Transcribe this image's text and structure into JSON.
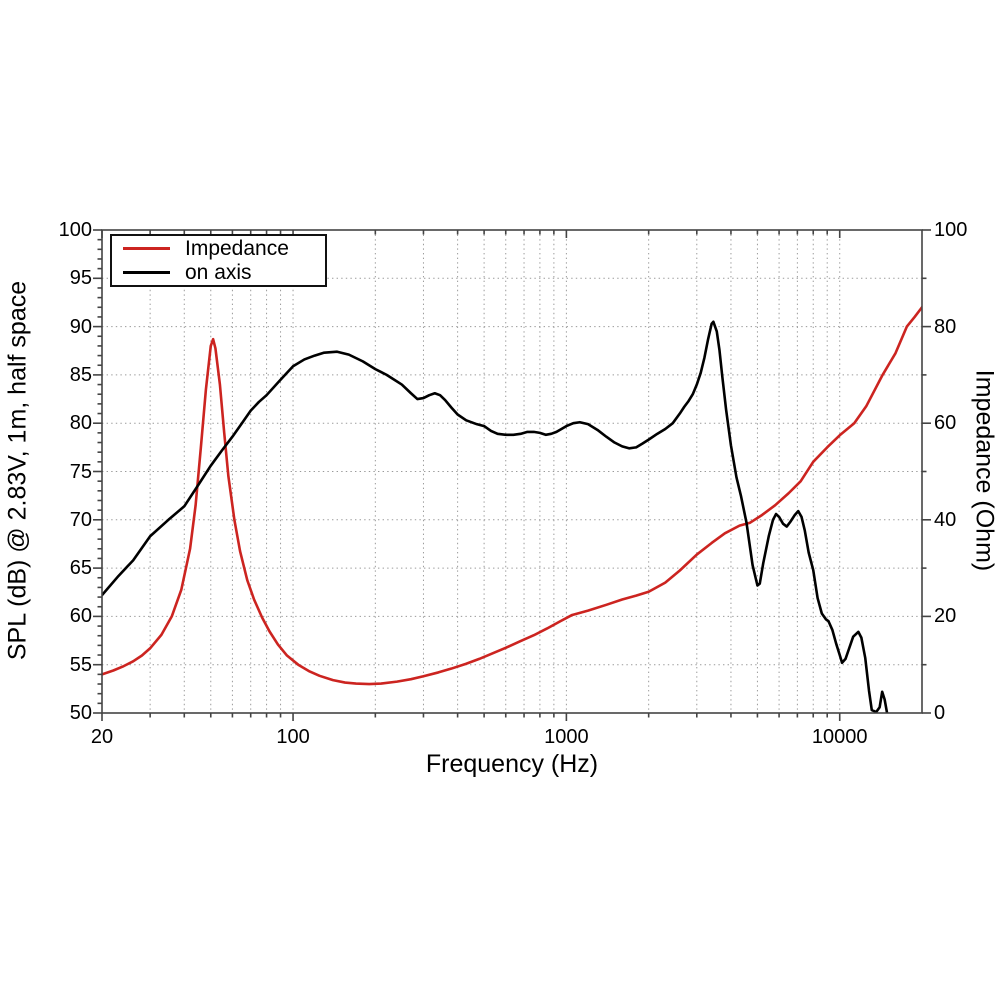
{
  "legend": {
    "items": [
      {
        "label": "Impedance",
        "color": "#cc2420"
      },
      {
        "label": "on axis",
        "color": "#000000"
      }
    ]
  },
  "axes": {
    "x": {
      "label": "Frequency (Hz)",
      "scale": "log",
      "min": 20,
      "max": 20000,
      "ticks": [
        20,
        100,
        1000,
        10000
      ],
      "tick_labels": [
        "20",
        "100",
        "1000",
        "10000"
      ]
    },
    "y_left": {
      "label": "SPL (dB) @ 2.83V, 1m, half space",
      "min": 50,
      "max": 100,
      "major_step": 5,
      "minor_step": 1,
      "tick_labels": [
        "50",
        "55",
        "60",
        "65",
        "70",
        "75",
        "80",
        "85",
        "90",
        "95",
        "100"
      ]
    },
    "y_right": {
      "label": "Impedance (Ohm)",
      "min": 0,
      "max": 100,
      "major_step": 20,
      "minor_step": 10,
      "tick_labels": [
        "0",
        "20",
        "40",
        "60",
        "80",
        "100"
      ]
    }
  },
  "style": {
    "frame_color": "#444444",
    "grid_color": "#9a9a9a",
    "background": "#ffffff"
  },
  "chart_data": {
    "type": "line",
    "title": "",
    "xlabel": "Frequency (Hz)",
    "x_scale": "log",
    "xlim": [
      20,
      20000
    ],
    "ylim_left": [
      50,
      100
    ],
    "ylim_right": [
      0,
      100
    ],
    "grid": true,
    "legend_position": "top-left",
    "series": [
      {
        "name": "Impedance",
        "axis": "right",
        "unit": "Ohm",
        "color": "#cc2420",
        "points": [
          [
            20,
            8
          ],
          [
            22,
            8.8
          ],
          [
            24,
            9.7
          ],
          [
            26,
            10.7
          ],
          [
            28,
            11.9
          ],
          [
            30,
            13.4
          ],
          [
            33,
            16.2
          ],
          [
            36,
            20
          ],
          [
            39,
            25.5
          ],
          [
            42,
            34
          ],
          [
            44,
            43
          ],
          [
            46,
            55
          ],
          [
            48,
            67
          ],
          [
            50,
            76
          ],
          [
            51,
            77.4
          ],
          [
            52,
            75.5
          ],
          [
            54,
            68
          ],
          [
            56,
            58
          ],
          [
            58,
            49
          ],
          [
            61,
            40
          ],
          [
            64,
            33.5
          ],
          [
            68,
            27.5
          ],
          [
            72,
            23.5
          ],
          [
            77,
            19.8
          ],
          [
            82,
            16.9
          ],
          [
            88,
            14.2
          ],
          [
            95,
            11.9
          ],
          [
            105,
            9.9
          ],
          [
            115,
            8.6
          ],
          [
            125,
            7.7
          ],
          [
            140,
            6.8
          ],
          [
            155,
            6.3
          ],
          [
            170,
            6.1
          ],
          [
            190,
            6
          ],
          [
            210,
            6.1
          ],
          [
            240,
            6.5
          ],
          [
            270,
            7
          ],
          [
            300,
            7.6
          ],
          [
            340,
            8.4
          ],
          [
            380,
            9.2
          ],
          [
            430,
            10.2
          ],
          [
            480,
            11.2
          ],
          [
            540,
            12.4
          ],
          [
            600,
            13.5
          ],
          [
            680,
            14.9
          ],
          [
            760,
            16.1
          ],
          [
            850,
            17.5
          ],
          [
            950,
            19
          ],
          [
            1050,
            20.3
          ],
          [
            1200,
            21.2
          ],
          [
            1400,
            22.4
          ],
          [
            1600,
            23.5
          ],
          [
            1800,
            24.3
          ],
          [
            2000,
            25.1
          ],
          [
            2300,
            27
          ],
          [
            2600,
            29.5
          ],
          [
            3000,
            32.8
          ],
          [
            3400,
            35.2
          ],
          [
            3800,
            37.2
          ],
          [
            4300,
            38.8
          ],
          [
            4700,
            39.4
          ],
          [
            5200,
            41
          ],
          [
            5800,
            43
          ],
          [
            6500,
            45.5
          ],
          [
            7200,
            48
          ],
          [
            8000,
            52
          ],
          [
            9000,
            55
          ],
          [
            10000,
            57.5
          ],
          [
            11300,
            60
          ],
          [
            12500,
            63.5
          ],
          [
            14350,
            70
          ],
          [
            16000,
            74.5
          ],
          [
            17600,
            80
          ],
          [
            18800,
            82
          ],
          [
            20000,
            84
          ]
        ]
      },
      {
        "name": "on axis",
        "axis": "left",
        "unit": "dB",
        "color": "#000000",
        "points": [
          [
            20,
            62.2
          ],
          [
            23,
            64.2
          ],
          [
            26,
            65.8
          ],
          [
            30,
            68.3
          ],
          [
            35,
            70
          ],
          [
            40,
            71.4
          ],
          [
            45,
            73.6
          ],
          [
            50,
            75.6
          ],
          [
            55,
            77.2
          ],
          [
            60,
            78.6
          ],
          [
            65,
            80
          ],
          [
            70,
            81.3
          ],
          [
            75,
            82.2
          ],
          [
            80,
            82.9
          ],
          [
            90,
            84.5
          ],
          [
            100,
            85.9
          ],
          [
            110,
            86.6
          ],
          [
            120,
            87
          ],
          [
            130,
            87.3
          ],
          [
            145,
            87.4
          ],
          [
            160,
            87.1
          ],
          [
            180,
            86.4
          ],
          [
            200,
            85.6
          ],
          [
            220,
            85
          ],
          [
            250,
            84
          ],
          [
            270,
            83.1
          ],
          [
            285,
            82.5
          ],
          [
            300,
            82.6
          ],
          [
            315,
            82.9
          ],
          [
            330,
            83.1
          ],
          [
            345,
            82.9
          ],
          [
            360,
            82.4
          ],
          [
            380,
            81.6
          ],
          [
            400,
            80.9
          ],
          [
            430,
            80.3
          ],
          [
            470,
            79.9
          ],
          [
            500,
            79.7
          ],
          [
            530,
            79.2
          ],
          [
            560,
            78.9
          ],
          [
            600,
            78.8
          ],
          [
            640,
            78.8
          ],
          [
            680,
            78.9
          ],
          [
            720,
            79.1
          ],
          [
            760,
            79.1
          ],
          [
            800,
            79
          ],
          [
            840,
            78.8
          ],
          [
            880,
            78.9
          ],
          [
            920,
            79.1
          ],
          [
            1000,
            79.7
          ],
          [
            1060,
            80
          ],
          [
            1120,
            80.1
          ],
          [
            1200,
            79.9
          ],
          [
            1300,
            79.3
          ],
          [
            1400,
            78.6
          ],
          [
            1500,
            78
          ],
          [
            1600,
            77.6
          ],
          [
            1700,
            77.4
          ],
          [
            1800,
            77.5
          ],
          [
            1900,
            77.9
          ],
          [
            2000,
            78.3
          ],
          [
            2150,
            78.9
          ],
          [
            2300,
            79.4
          ],
          [
            2450,
            80
          ],
          [
            2600,
            81
          ],
          [
            2700,
            81.7
          ],
          [
            2800,
            82.3
          ],
          [
            2900,
            83
          ],
          [
            3000,
            84
          ],
          [
            3100,
            85.2
          ],
          [
            3200,
            86.8
          ],
          [
            3300,
            88.7
          ],
          [
            3400,
            90.3
          ],
          [
            3450,
            90.5
          ],
          [
            3550,
            89.5
          ],
          [
            3630,
            87.6
          ],
          [
            3720,
            84.8
          ],
          [
            3840,
            81.4
          ],
          [
            4000,
            77.7
          ],
          [
            4190,
            74.4
          ],
          [
            4350,
            72.5
          ],
          [
            4560,
            69.7
          ],
          [
            4800,
            65.3
          ],
          [
            5000,
            63.2
          ],
          [
            5100,
            63.4
          ],
          [
            5250,
            65.5
          ],
          [
            5500,
            68.3
          ],
          [
            5700,
            70
          ],
          [
            5850,
            70.6
          ],
          [
            6000,
            70.3
          ],
          [
            6200,
            69.6
          ],
          [
            6400,
            69.3
          ],
          [
            6600,
            69.8
          ],
          [
            6850,
            70.5
          ],
          [
            7050,
            70.9
          ],
          [
            7250,
            70.3
          ],
          [
            7450,
            68.9
          ],
          [
            7700,
            66.6
          ],
          [
            8000,
            64.8
          ],
          [
            8300,
            61.9
          ],
          [
            8600,
            60.3
          ],
          [
            8900,
            59.7
          ],
          [
            9100,
            59.5
          ],
          [
            9400,
            58.6
          ],
          [
            9700,
            57.2
          ],
          [
            10000,
            56
          ],
          [
            10200,
            55.2
          ],
          [
            10500,
            55.6
          ],
          [
            10800,
            56.6
          ],
          [
            11200,
            57.9
          ],
          [
            11700,
            58.4
          ],
          [
            12000,
            57.8
          ],
          [
            12400,
            55.7
          ],
          [
            12800,
            52.3
          ],
          [
            13100,
            50.3
          ],
          [
            13600,
            50.1
          ],
          [
            14000,
            50.6
          ],
          [
            14300,
            52.2
          ],
          [
            14600,
            51.4
          ],
          [
            14900,
            50
          ],
          [
            15100,
            49.5
          ]
        ]
      }
    ]
  }
}
